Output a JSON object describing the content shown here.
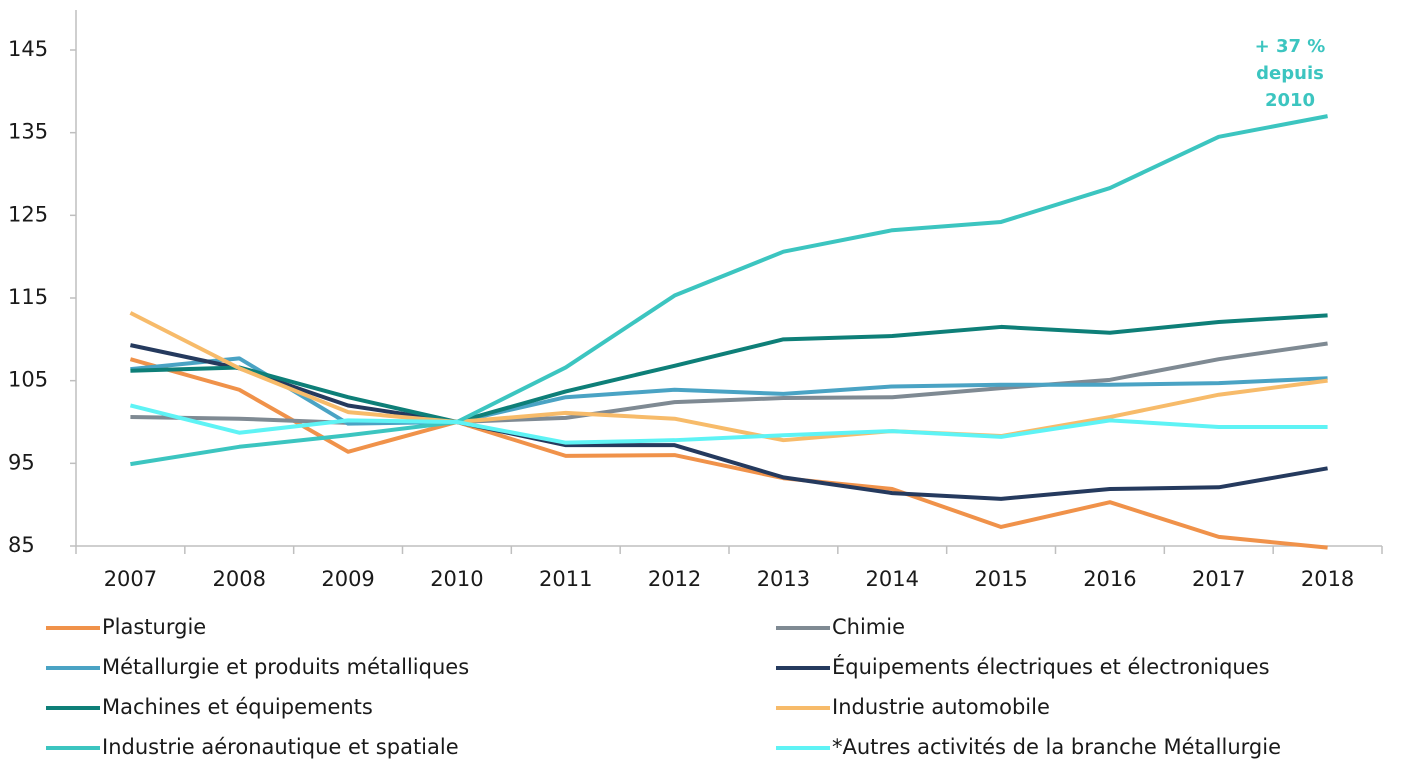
{
  "chart_data": {
    "type": "line",
    "categories": [
      "2007",
      "2008",
      "2009",
      "2010",
      "2011",
      "2012",
      "2013",
      "2014",
      "2015",
      "2016",
      "2017",
      "2018"
    ],
    "ylim": [
      85,
      145
    ],
    "yticks": [
      85,
      95,
      105,
      115,
      125,
      135,
      145
    ],
    "grid": false,
    "annotation": {
      "lines": [
        "+ 37 %",
        "depuis",
        "2010"
      ],
      "color": "#3cc5c0"
    },
    "legend_position": "bottom",
    "series": [
      {
        "name": "Plasturgie",
        "color": "#f0924a",
        "values": [
          107.6,
          103.9,
          96.4,
          100,
          95.9,
          96.0,
          93.2,
          91.9,
          87.3,
          90.3,
          86.1,
          84.8
        ]
      },
      {
        "name": "Chimie",
        "color": "#7f8a93",
        "values": [
          100.6,
          100.4,
          99.9,
          100,
          100.5,
          102.4,
          102.9,
          103.0,
          104.1,
          105.1,
          107.6,
          109.5
        ]
      },
      {
        "name": "Métallurgie et produits métalliques",
        "color": "#4aa3c4",
        "values": [
          106.4,
          107.7,
          99.8,
          100,
          103.0,
          103.9,
          103.4,
          104.3,
          104.5,
          104.5,
          104.7,
          105.3
        ]
      },
      {
        "name": "Équipements électriques et électroniques",
        "color": "#253a5e",
        "values": [
          109.3,
          106.5,
          102.0,
          100,
          97.2,
          97.2,
          93.3,
          91.4,
          90.7,
          91.9,
          92.1,
          94.4
        ]
      },
      {
        "name": "Machines et équipements",
        "color": "#0e7f78",
        "values": [
          106.2,
          106.6,
          103.0,
          100,
          103.7,
          106.8,
          110.0,
          110.4,
          111.5,
          110.8,
          112.1,
          112.9
        ]
      },
      {
        "name": "Industrie automobile",
        "color": "#f7bb6a",
        "values": [
          113.2,
          106.5,
          101.2,
          100,
          101.1,
          100.4,
          97.8,
          98.9,
          98.3,
          100.6,
          103.3,
          105.0
        ]
      },
      {
        "name": "Industrie aéronautique et spatiale",
        "color": "#3cc5c0",
        "values": [
          94.9,
          97.0,
          98.4,
          100,
          106.6,
          115.3,
          120.6,
          123.2,
          124.2,
          128.3,
          134.5,
          137.0
        ]
      },
      {
        "name": "*Autres activités de la branche Métallurgie",
        "color": "#5ef3f5",
        "values": [
          102.0,
          98.7,
          100.2,
          100,
          97.5,
          97.8,
          98.4,
          98.9,
          98.2,
          100.2,
          99.4,
          99.4
        ]
      }
    ]
  }
}
